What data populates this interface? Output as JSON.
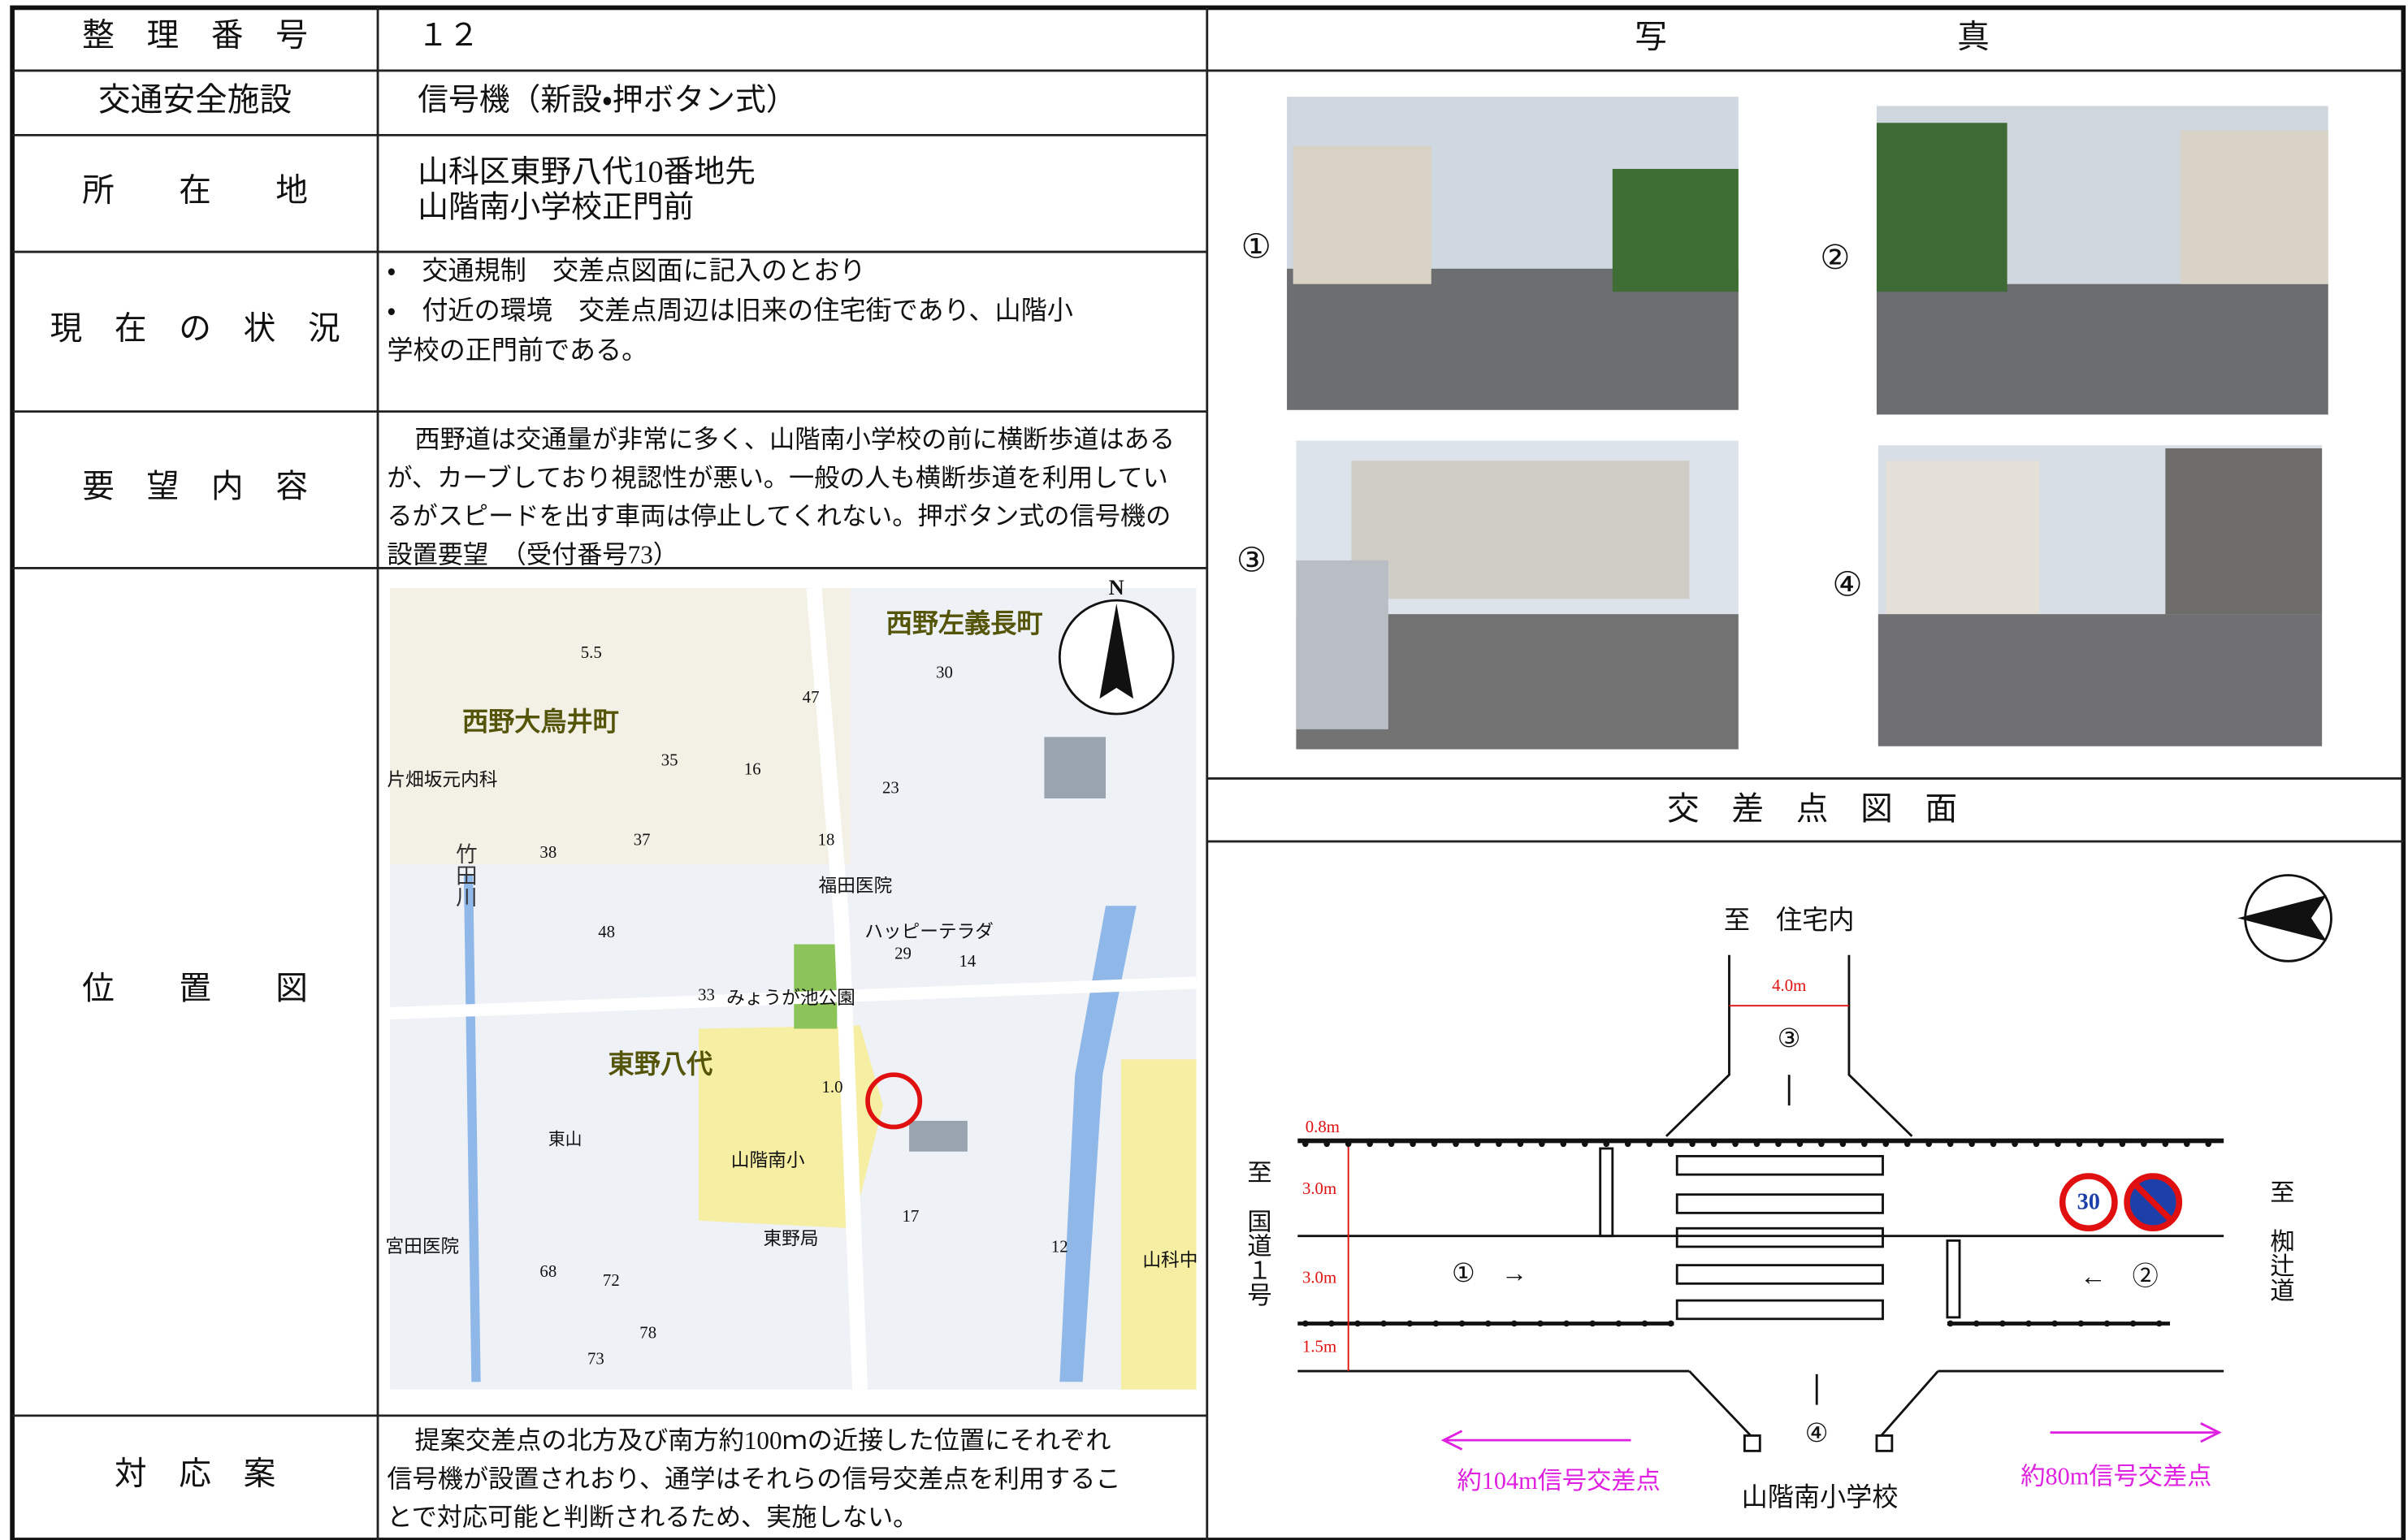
{
  "form": {
    "rows": [
      {
        "label": "整　理　番　号",
        "value": [
          "１２"
        ]
      },
      {
        "label": "交通安全施設",
        "value": [
          "信号機（新設・押ボタン式）"
        ]
      },
      {
        "label": "所　　在　　地",
        "value": [
          "山科区東野八代10番地先",
          "山階南小学校正門前"
        ]
      },
      {
        "label": "現　在　の　状　況",
        "value": [
          "・　交通規制　交差点図面に記入のとおり",
          "・　付近の環境　交差点周辺は旧来の住宅街であり、山階小",
          "学校の正門前である。"
        ]
      },
      {
        "label": "要　望　内　容",
        "value": [
          "西野道は交通量が非常に多く、山階南小学校の前に横断歩道はある",
          "が、カーブしており視認性が悪い。一般の人も横断歩道を利用してい",
          "るがスピードを出す車両は停止してくれない。押ボタン式の信号機の",
          "設置要望　（受付番号73）"
        ]
      },
      {
        "label": "位　　置　　図",
        "value": []
      },
      {
        "label": "対　応　案",
        "value": [
          "提案交差点の北方及び南方約100ｍの近接した位置にそれぞれ",
          "信号機が設置されおり、通学はそれらの信号交差点を利用するこ",
          "とで対応可能と判断されるため、実施しない。"
        ]
      }
    ]
  },
  "photos": {
    "header": "写　　　　　　　　　真",
    "labels": [
      "①",
      "②",
      "③",
      "④"
    ]
  },
  "map": {
    "north": "N",
    "labels": [
      "西野左義長町",
      "西野大鳥井町",
      "東野八代",
      "山階南小",
      "福田医院",
      "ハッピーテラダ",
      "みょうが池公園",
      "片畑坂元内科",
      "竹田川",
      "東山",
      "宮田医院",
      "東野局",
      "山科中",
      "5.5",
      "30",
      "47",
      "35",
      "16",
      "23",
      "37",
      "18",
      "38",
      "48",
      "29",
      "14",
      "33",
      "1.0",
      "17",
      "12",
      "68",
      "72",
      "78",
      "73"
    ]
  },
  "diagram": {
    "header": "交　差　点　図　面",
    "north_label": "至　住宅内",
    "south_label": "山階南小学校",
    "west_label": "至　国道１号",
    "east_label": "至　椥辻道",
    "dims": [
      "4.0m",
      "0.8m",
      "3.0m",
      "3.0m",
      "1.5m"
    ],
    "markers": [
      "①　→",
      "←　②",
      "③",
      "④"
    ],
    "speed": "30",
    "left_note": "約104m信号交差点",
    "right_note": "約80m信号交差点"
  }
}
